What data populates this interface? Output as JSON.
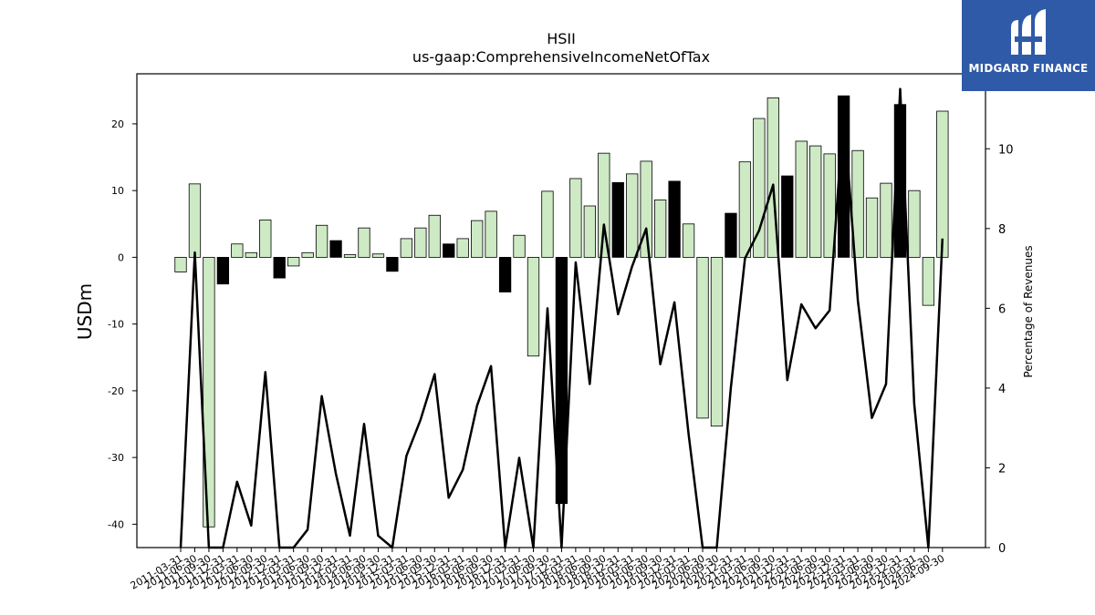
{
  "brand": {
    "name": "MIDGARD FINANCE",
    "color": "#2f5aa8"
  },
  "chart_data": {
    "type": "bar",
    "title": "HSII",
    "subtitle": "us-gaap:ComprehensiveIncomeNetOfTax",
    "ylabel": "USDm",
    "y2label": "Percentage of Revenues",
    "ylim": [
      -43.5,
      27.5
    ],
    "y2lim": [
      0,
      11.88
    ],
    "yticks": [
      -40,
      -30,
      -20,
      -10,
      0,
      10,
      20
    ],
    "y2ticks": [
      0,
      2,
      4,
      6,
      8,
      10
    ],
    "categories": [
      "2011-03-31",
      "2011-06-30",
      "2011-09-30",
      "2011-12-31",
      "2012-03-31",
      "2012-06-30",
      "2012-09-30",
      "2012-12-31",
      "2013-03-31",
      "2013-06-30",
      "2013-09-30",
      "2013-12-31",
      "2014-03-31",
      "2014-06-30",
      "2014-09-30",
      "2014-12-31",
      "2015-03-31",
      "2015-06-30",
      "2015-09-30",
      "2015-12-31",
      "2016-03-31",
      "2016-06-30",
      "2016-09-30",
      "2016-12-31",
      "2017-03-31",
      "2017-06-30",
      "2017-09-30",
      "2017-12-31",
      "2018-03-31",
      "2018-06-30",
      "2018-09-30",
      "2018-12-31",
      "2019-03-31",
      "2019-06-30",
      "2019-09-30",
      "2019-12-31",
      "2020-03-31",
      "2020-06-30",
      "2020-09-30",
      "2020-12-31",
      "2021-03-31",
      "2021-06-30",
      "2021-09-30",
      "2021-12-31",
      "2022-03-31",
      "2022-06-30",
      "2022-09-30",
      "2022-12-31",
      "2023-03-31",
      "2023-06-30",
      "2023-09-30",
      "2023-12-31",
      "2024-03-31",
      "2024-06-30",
      "2024-09-30"
    ],
    "series": [
      {
        "type": "bar",
        "values": [
          -2.2,
          11.0,
          -40.4,
          -4.0,
          2.0,
          0.7,
          5.6,
          -3.1,
          -1.3,
          0.7,
          4.8,
          2.5,
          0.4,
          4.4,
          0.5,
          -2.1,
          2.8,
          4.4,
          6.3,
          2.0,
          2.8,
          5.5,
          6.9,
          -5.2,
          3.3,
          -14.8,
          9.9,
          -36.9,
          11.8,
          7.7,
          15.6,
          11.2,
          12.5,
          14.4,
          8.6,
          11.4,
          5.0,
          -24.1,
          -25.3,
          6.6,
          14.3,
          20.8,
          23.9,
          12.2,
          17.4,
          16.7,
          15.5,
          24.2,
          16.0,
          8.9,
          11.1,
          22.9,
          10.0,
          -7.2,
          21.9
        ],
        "highlight_color": "#000000",
        "base_color": "#cdeac4"
      },
      {
        "type": "line",
        "axis": "secondary",
        "values": [
          0.0,
          7.4,
          0.0,
          0.0,
          1.65,
          0.55,
          4.4,
          0.0,
          0.0,
          0.45,
          3.8,
          1.85,
          0.3,
          3.1,
          0.3,
          0.0,
          2.3,
          3.2,
          4.35,
          1.25,
          1.95,
          3.55,
          4.55,
          0.0,
          2.25,
          0.0,
          6.0,
          0.0,
          7.15,
          4.1,
          8.1,
          5.85,
          7.05,
          8.0,
          4.6,
          6.15,
          2.85,
          0.0,
          0.0,
          4.0,
          7.25,
          7.95,
          9.1,
          4.2,
          6.1,
          5.5,
          5.95,
          11.0,
          6.2,
          3.25,
          4.1,
          11.5,
          3.6,
          0.0,
          7.75
        ]
      }
    ],
    "highlight_flags": [
      0,
      0,
      0,
      1,
      0,
      0,
      0,
      1,
      0,
      0,
      0,
      1,
      0,
      0,
      0,
      1,
      0,
      0,
      0,
      1,
      0,
      0,
      0,
      1,
      0,
      0,
      0,
      1,
      0,
      0,
      0,
      1,
      0,
      0,
      0,
      1,
      0,
      0,
      0,
      1,
      0,
      0,
      0,
      1,
      0,
      0,
      0,
      1,
      0,
      0,
      0,
      1,
      0,
      0,
      0
    ],
    "grid": false,
    "legend": "none"
  }
}
